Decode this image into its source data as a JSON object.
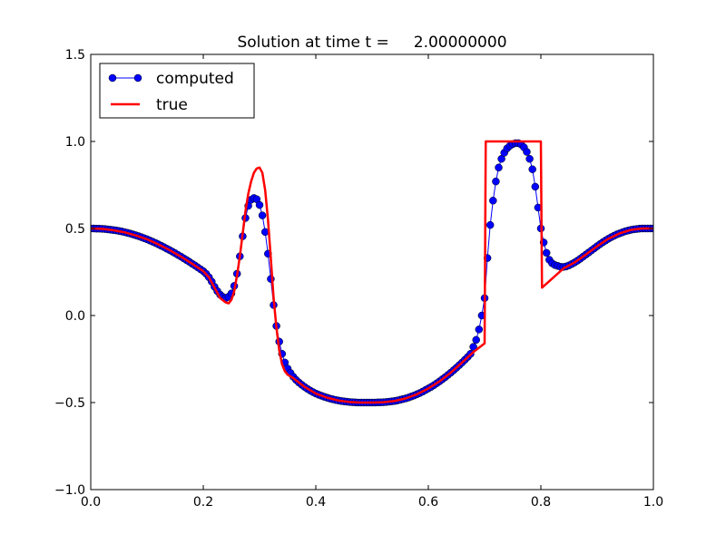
{
  "chart_data": {
    "type": "line",
    "title": "Solution at time t =     2.00000000",
    "xlabel": "",
    "ylabel": "",
    "xlim": [
      0.0,
      1.0
    ],
    "ylim": [
      -1.0,
      1.5
    ],
    "x_ticks": [
      "0.0",
      "0.2",
      "0.4",
      "0.6",
      "0.8",
      "1.0"
    ],
    "y_ticks": [
      "−1.0",
      "−0.5",
      "0.0",
      "0.5",
      "1.0",
      "1.5"
    ],
    "grid": false,
    "legend_position": "upper-left",
    "series": [
      {
        "name": "computed",
        "style": "line-with-circle-markers",
        "color": "#0000ff",
        "points": [
          [
            0.0,
            0.5
          ],
          [
            0.005,
            0.5
          ],
          [
            0.01,
            0.499
          ],
          [
            0.015,
            0.499
          ],
          [
            0.02,
            0.498
          ],
          [
            0.025,
            0.497
          ],
          [
            0.03,
            0.495
          ],
          [
            0.035,
            0.493
          ],
          [
            0.04,
            0.491
          ],
          [
            0.045,
            0.489
          ],
          [
            0.05,
            0.486
          ],
          [
            0.055,
            0.483
          ],
          [
            0.06,
            0.479
          ],
          [
            0.065,
            0.475
          ],
          [
            0.07,
            0.471
          ],
          [
            0.075,
            0.466
          ],
          [
            0.08,
            0.461
          ],
          [
            0.085,
            0.456
          ],
          [
            0.09,
            0.45
          ],
          [
            0.095,
            0.444
          ],
          [
            0.1,
            0.438
          ],
          [
            0.105,
            0.431
          ],
          [
            0.11,
            0.424
          ],
          [
            0.115,
            0.417
          ],
          [
            0.12,
            0.409
          ],
          [
            0.125,
            0.401
          ],
          [
            0.13,
            0.393
          ],
          [
            0.135,
            0.384
          ],
          [
            0.14,
            0.376
          ],
          [
            0.145,
            0.367
          ],
          [
            0.15,
            0.358
          ],
          [
            0.155,
            0.348
          ],
          [
            0.16,
            0.339
          ],
          [
            0.165,
            0.329
          ],
          [
            0.17,
            0.319
          ],
          [
            0.175,
            0.309
          ],
          [
            0.18,
            0.298
          ],
          [
            0.185,
            0.288
          ],
          [
            0.19,
            0.277
          ],
          [
            0.195,
            0.266
          ],
          [
            0.2,
            0.255
          ],
          [
            0.205,
            0.24
          ],
          [
            0.21,
            0.22
          ],
          [
            0.215,
            0.195
          ],
          [
            0.22,
            0.165
          ],
          [
            0.225,
            0.14
          ],
          [
            0.23,
            0.12
          ],
          [
            0.235,
            0.107
          ],
          [
            0.24,
            0.1
          ],
          [
            0.245,
            0.108
          ],
          [
            0.25,
            0.127
          ],
          [
            0.255,
            0.17
          ],
          [
            0.26,
            0.24
          ],
          [
            0.265,
            0.34
          ],
          [
            0.27,
            0.455
          ],
          [
            0.275,
            0.56
          ],
          [
            0.28,
            0.63
          ],
          [
            0.285,
            0.665
          ],
          [
            0.29,
            0.675
          ],
          [
            0.295,
            0.668
          ],
          [
            0.3,
            0.635
          ],
          [
            0.305,
            0.575
          ],
          [
            0.31,
            0.48
          ],
          [
            0.315,
            0.355
          ],
          [
            0.32,
            0.21
          ],
          [
            0.325,
            0.06
          ],
          [
            0.33,
            -0.06
          ],
          [
            0.335,
            -0.15
          ],
          [
            0.34,
            -0.22
          ],
          [
            0.345,
            -0.27
          ],
          [
            0.35,
            -0.305
          ],
          [
            0.355,
            -0.33
          ],
          [
            0.36,
            -0.352
          ],
          [
            0.365,
            -0.37
          ],
          [
            0.37,
            -0.385
          ],
          [
            0.375,
            -0.398
          ],
          [
            0.38,
            -0.41
          ],
          [
            0.385,
            -0.421
          ],
          [
            0.39,
            -0.431
          ],
          [
            0.395,
            -0.44
          ],
          [
            0.4,
            -0.448
          ],
          [
            0.405,
            -0.455
          ],
          [
            0.41,
            -0.461
          ],
          [
            0.415,
            -0.467
          ],
          [
            0.42,
            -0.472
          ],
          [
            0.425,
            -0.477
          ],
          [
            0.43,
            -0.481
          ],
          [
            0.435,
            -0.485
          ],
          [
            0.44,
            -0.488
          ],
          [
            0.445,
            -0.491
          ],
          [
            0.45,
            -0.493
          ],
          [
            0.455,
            -0.495
          ],
          [
            0.46,
            -0.497
          ],
          [
            0.465,
            -0.498
          ],
          [
            0.47,
            -0.499
          ],
          [
            0.475,
            -0.5
          ],
          [
            0.48,
            -0.5
          ],
          [
            0.485,
            -0.5
          ],
          [
            0.49,
            -0.5
          ],
          [
            0.495,
            -0.5
          ],
          [
            0.5,
            -0.5
          ],
          [
            0.505,
            -0.5
          ],
          [
            0.51,
            -0.499
          ],
          [
            0.515,
            -0.499
          ],
          [
            0.52,
            -0.498
          ],
          [
            0.525,
            -0.497
          ],
          [
            0.53,
            -0.495
          ],
          [
            0.535,
            -0.493
          ],
          [
            0.54,
            -0.491
          ],
          [
            0.545,
            -0.488
          ],
          [
            0.55,
            -0.484
          ],
          [
            0.555,
            -0.48
          ],
          [
            0.56,
            -0.476
          ],
          [
            0.565,
            -0.471
          ],
          [
            0.57,
            -0.465
          ],
          [
            0.575,
            -0.459
          ],
          [
            0.58,
            -0.452
          ],
          [
            0.585,
            -0.445
          ],
          [
            0.59,
            -0.437
          ],
          [
            0.595,
            -0.428
          ],
          [
            0.6,
            -0.419
          ],
          [
            0.605,
            -0.41
          ],
          [
            0.61,
            -0.4
          ],
          [
            0.615,
            -0.389
          ],
          [
            0.62,
            -0.378
          ],
          [
            0.625,
            -0.366
          ],
          [
            0.63,
            -0.354
          ],
          [
            0.635,
            -0.341
          ],
          [
            0.64,
            -0.328
          ],
          [
            0.645,
            -0.314
          ],
          [
            0.65,
            -0.3
          ],
          [
            0.655,
            -0.285
          ],
          [
            0.66,
            -0.27
          ],
          [
            0.665,
            -0.254
          ],
          [
            0.67,
            -0.238
          ],
          [
            0.675,
            -0.22
          ],
          [
            0.68,
            -0.18
          ],
          [
            0.685,
            -0.14
          ],
          [
            0.69,
            -0.08
          ],
          [
            0.695,
            0.0
          ],
          [
            0.7,
            0.1
          ],
          [
            0.705,
            0.33
          ],
          [
            0.71,
            0.52
          ],
          [
            0.715,
            0.66
          ],
          [
            0.72,
            0.77
          ],
          [
            0.725,
            0.85
          ],
          [
            0.73,
            0.9
          ],
          [
            0.735,
            0.935
          ],
          [
            0.74,
            0.96
          ],
          [
            0.745,
            0.975
          ],
          [
            0.75,
            0.985
          ],
          [
            0.755,
            0.99
          ],
          [
            0.76,
            0.99
          ],
          [
            0.765,
            0.982
          ],
          [
            0.77,
            0.966
          ],
          [
            0.775,
            0.94
          ],
          [
            0.78,
            0.9
          ],
          [
            0.785,
            0.84
          ],
          [
            0.79,
            0.74
          ],
          [
            0.795,
            0.62
          ],
          [
            0.8,
            0.5
          ],
          [
            0.805,
            0.42
          ],
          [
            0.81,
            0.36
          ],
          [
            0.815,
            0.32
          ],
          [
            0.82,
            0.3
          ],
          [
            0.825,
            0.29
          ],
          [
            0.83,
            0.285
          ],
          [
            0.835,
            0.28
          ],
          [
            0.84,
            0.279
          ],
          [
            0.845,
            0.282
          ],
          [
            0.85,
            0.288
          ],
          [
            0.855,
            0.296
          ],
          [
            0.86,
            0.305
          ],
          [
            0.865,
            0.315
          ],
          [
            0.87,
            0.326
          ],
          [
            0.875,
            0.338
          ],
          [
            0.88,
            0.35
          ],
          [
            0.885,
            0.362
          ],
          [
            0.89,
            0.374
          ],
          [
            0.895,
            0.386
          ],
          [
            0.9,
            0.398
          ],
          [
            0.905,
            0.41
          ],
          [
            0.91,
            0.421
          ],
          [
            0.915,
            0.431
          ],
          [
            0.92,
            0.441
          ],
          [
            0.925,
            0.45
          ],
          [
            0.93,
            0.458
          ],
          [
            0.935,
            0.466
          ],
          [
            0.94,
            0.472
          ],
          [
            0.945,
            0.478
          ],
          [
            0.95,
            0.484
          ],
          [
            0.955,
            0.488
          ],
          [
            0.96,
            0.492
          ],
          [
            0.965,
            0.495
          ],
          [
            0.97,
            0.497
          ],
          [
            0.975,
            0.499
          ],
          [
            0.98,
            0.5
          ],
          [
            0.985,
            0.5
          ],
          [
            0.99,
            0.5
          ],
          [
            0.995,
            0.5
          ],
          [
            1.0,
            0.5
          ]
        ]
      },
      {
        "name": "true",
        "style": "line",
        "color": "#ff0000",
        "points": [
          [
            0.0,
            0.5
          ],
          [
            0.02,
            0.498
          ],
          [
            0.04,
            0.49
          ],
          [
            0.06,
            0.478
          ],
          [
            0.08,
            0.46
          ],
          [
            0.1,
            0.438
          ],
          [
            0.12,
            0.409
          ],
          [
            0.14,
            0.376
          ],
          [
            0.16,
            0.339
          ],
          [
            0.18,
            0.298
          ],
          [
            0.2,
            0.255
          ],
          [
            0.21,
            0.22
          ],
          [
            0.22,
            0.16
          ],
          [
            0.23,
            0.1
          ],
          [
            0.24,
            0.075
          ],
          [
            0.245,
            0.07
          ],
          [
            0.25,
            0.09
          ],
          [
            0.255,
            0.14
          ],
          [
            0.26,
            0.23
          ],
          [
            0.265,
            0.34
          ],
          [
            0.27,
            0.47
          ],
          [
            0.275,
            0.6
          ],
          [
            0.28,
            0.7
          ],
          [
            0.285,
            0.77
          ],
          [
            0.29,
            0.82
          ],
          [
            0.295,
            0.845
          ],
          [
            0.3,
            0.85
          ],
          [
            0.305,
            0.82
          ],
          [
            0.31,
            0.72
          ],
          [
            0.315,
            0.55
          ],
          [
            0.32,
            0.33
          ],
          [
            0.325,
            0.1
          ],
          [
            0.33,
            -0.07
          ],
          [
            0.335,
            -0.2
          ],
          [
            0.34,
            -0.28
          ],
          [
            0.345,
            -0.32
          ],
          [
            0.35,
            -0.34
          ],
          [
            0.36,
            -0.36
          ],
          [
            0.37,
            -0.385
          ],
          [
            0.38,
            -0.41
          ],
          [
            0.4,
            -0.448
          ],
          [
            0.42,
            -0.472
          ],
          [
            0.44,
            -0.488
          ],
          [
            0.46,
            -0.497
          ],
          [
            0.48,
            -0.5
          ],
          [
            0.5,
            -0.5
          ],
          [
            0.52,
            -0.498
          ],
          [
            0.54,
            -0.491
          ],
          [
            0.56,
            -0.476
          ],
          [
            0.58,
            -0.452
          ],
          [
            0.6,
            -0.419
          ],
          [
            0.62,
            -0.378
          ],
          [
            0.64,
            -0.328
          ],
          [
            0.66,
            -0.27
          ],
          [
            0.68,
            -0.21
          ],
          [
            0.7,
            -0.16
          ],
          [
            0.702,
            1.0
          ],
          [
            0.75,
            1.0
          ],
          [
            0.8,
            1.0
          ],
          [
            0.802,
            0.16
          ],
          [
            0.84,
            0.27
          ],
          [
            0.86,
            0.305
          ],
          [
            0.88,
            0.35
          ],
          [
            0.9,
            0.398
          ],
          [
            0.92,
            0.441
          ],
          [
            0.94,
            0.472
          ],
          [
            0.96,
            0.492
          ],
          [
            0.98,
            0.5
          ],
          [
            1.0,
            0.5
          ]
        ]
      }
    ]
  }
}
